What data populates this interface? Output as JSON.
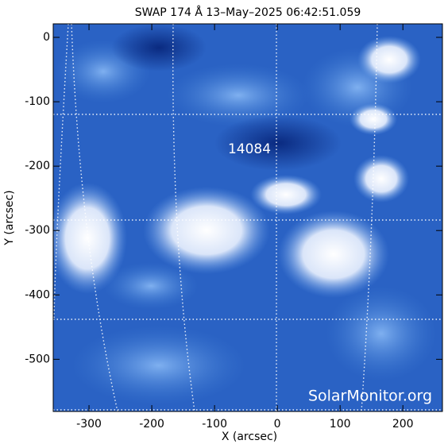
{
  "chart_data": {
    "type": "image",
    "title": "SWAP 174 Å 13–May–2025 06:42:51.059",
    "x_label": "X (arcsec)",
    "y_label": "Y (arcsec)",
    "xlim": [
      -357,
      263
    ],
    "ylim": [
      -581,
      21
    ],
    "xticks": [
      -300,
      -200,
      -100,
      0,
      100,
      200
    ],
    "yticks": [
      0,
      -100,
      -200,
      -300,
      -400,
      -500
    ],
    "annotation": "14084",
    "watermark": "SolarMonitor.org"
  }
}
